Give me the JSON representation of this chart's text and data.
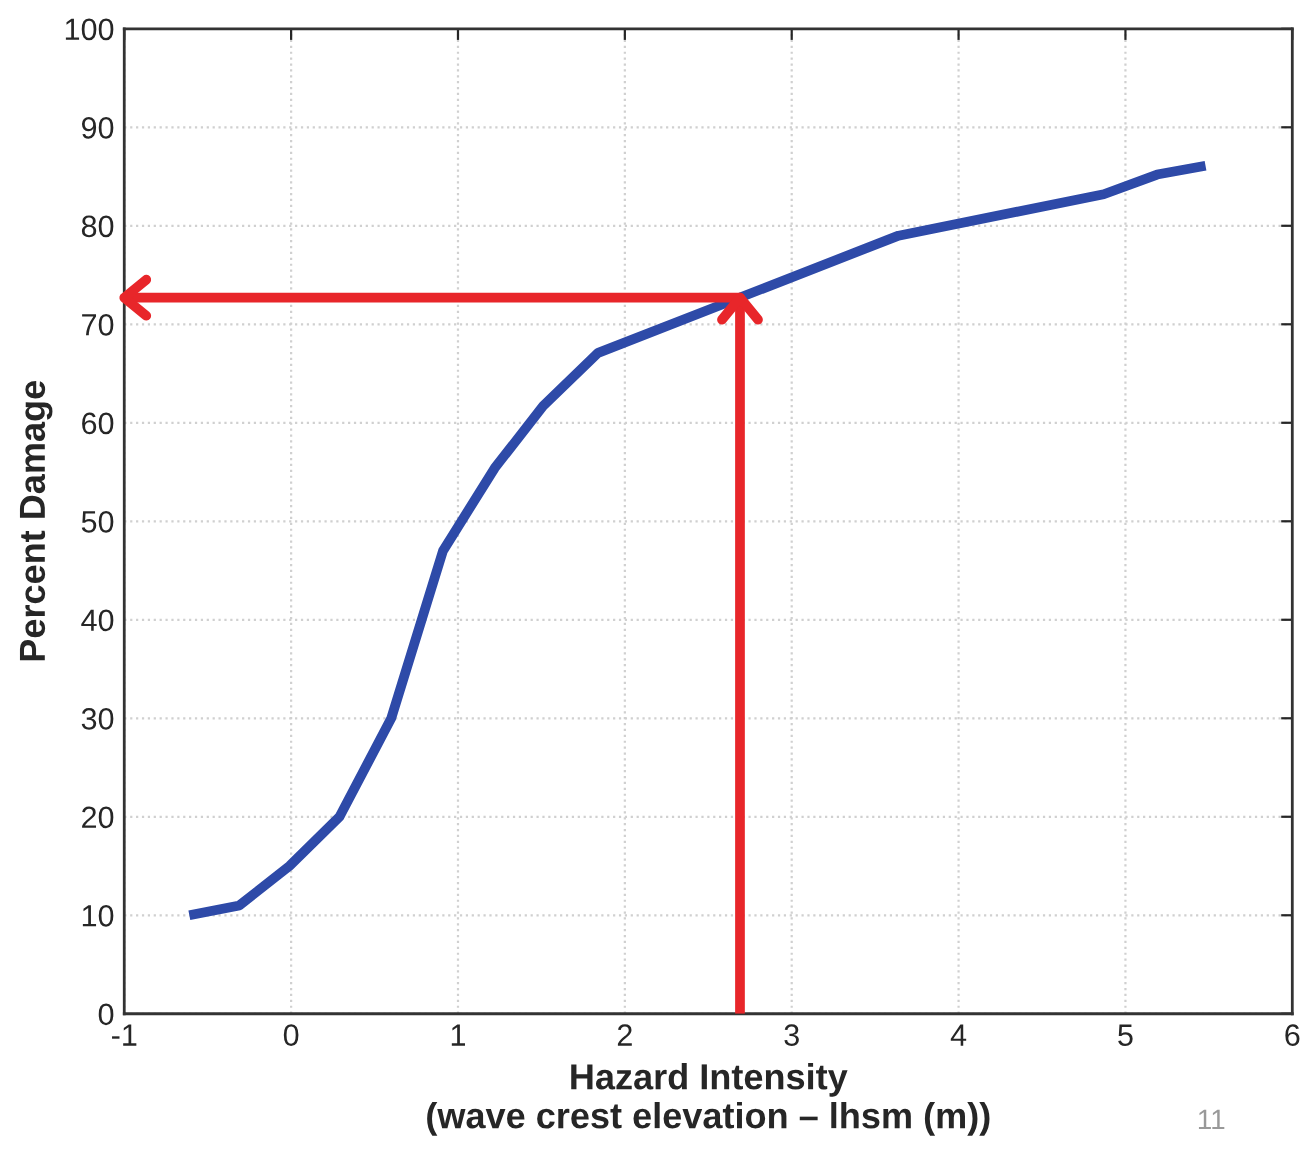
{
  "chart_data": {
    "type": "line",
    "xlabel": "Hazard Intensity\n(wave crest elevation – lhsm (m))",
    "ylabel": "Percent Damage",
    "xlim": [
      -1,
      6
    ],
    "xticks": [
      -1,
      0,
      1,
      2,
      3,
      4,
      5,
      6
    ],
    "ylim": [
      0,
      100
    ],
    "yticks": [
      0,
      10,
      20,
      30,
      40,
      50,
      60,
      70,
      80,
      90,
      100
    ],
    "grid": true,
    "marker": "none",
    "line_style": "solid",
    "series": [
      {
        "color": "#2e4aa8",
        "x": [
          -0.61,
          -0.31,
          -0.01,
          0.29,
          0.6,
          0.91,
          1.22,
          1.51,
          1.84,
          3.64,
          4.87,
          5.19,
          5.48
        ],
        "values": [
          10,
          11,
          15,
          20,
          30,
          47,
          55.4,
          61.7,
          67.1,
          79,
          83.2,
          85.2,
          86.1
        ]
      },
      {
        "color": "#e8262a",
        "x": [
          2.69,
          2.69,
          -1
        ],
        "values": [
          0,
          72.7,
          72.7
        ]
      }
    ],
    "annotations": [
      "11"
    ]
  }
}
